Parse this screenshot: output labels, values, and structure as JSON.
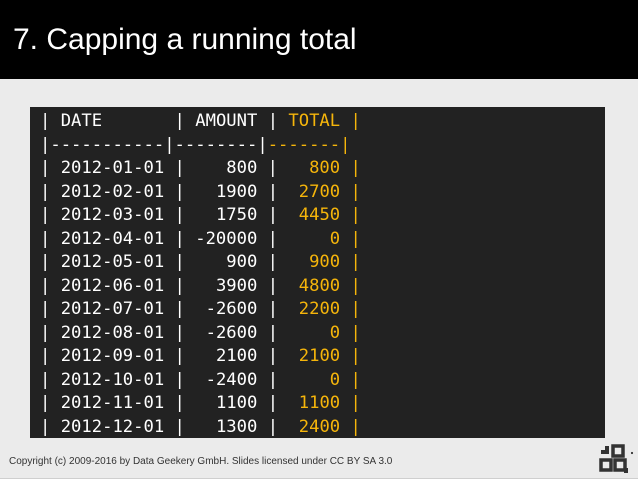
{
  "slide": {
    "title": "7. Capping a running total",
    "footer": "Copyright (c) 2009-2016 by Data Geekery GmbH. Slides licensed under CC BY SA 3.0"
  },
  "colors": {
    "header_bg": "#000000",
    "code_bg": "#222222",
    "code_text": "#ffffff",
    "highlight": "#f5b50b",
    "page_bg": "#ebebeb"
  },
  "logo": {
    "icon": "jooq-logo-icon"
  },
  "table": {
    "header": {
      "date": "DATE",
      "amount": "AMOUNT",
      "total": "TOTAL"
    },
    "separator": {
      "date": "-----------",
      "amount": "--------",
      "total": "-------"
    },
    "rows": [
      {
        "date": "2012-01-01",
        "amount": "800",
        "total": "800"
      },
      {
        "date": "2012-02-01",
        "amount": "1900",
        "total": "2700"
      },
      {
        "date": "2012-03-01",
        "amount": "1750",
        "total": "4450"
      },
      {
        "date": "2012-04-01",
        "amount": "-20000",
        "total": "0"
      },
      {
        "date": "2012-05-01",
        "amount": "900",
        "total": "900"
      },
      {
        "date": "2012-06-01",
        "amount": "3900",
        "total": "4800"
      },
      {
        "date": "2012-07-01",
        "amount": "-2600",
        "total": "2200"
      },
      {
        "date": "2012-08-01",
        "amount": "-2600",
        "total": "0"
      },
      {
        "date": "2012-09-01",
        "amount": "2100",
        "total": "2100"
      },
      {
        "date": "2012-10-01",
        "amount": "-2400",
        "total": "0"
      },
      {
        "date": "2012-11-01",
        "amount": "1100",
        "total": "1100"
      },
      {
        "date": "2012-12-01",
        "amount": "1300",
        "total": "2400"
      }
    ]
  }
}
